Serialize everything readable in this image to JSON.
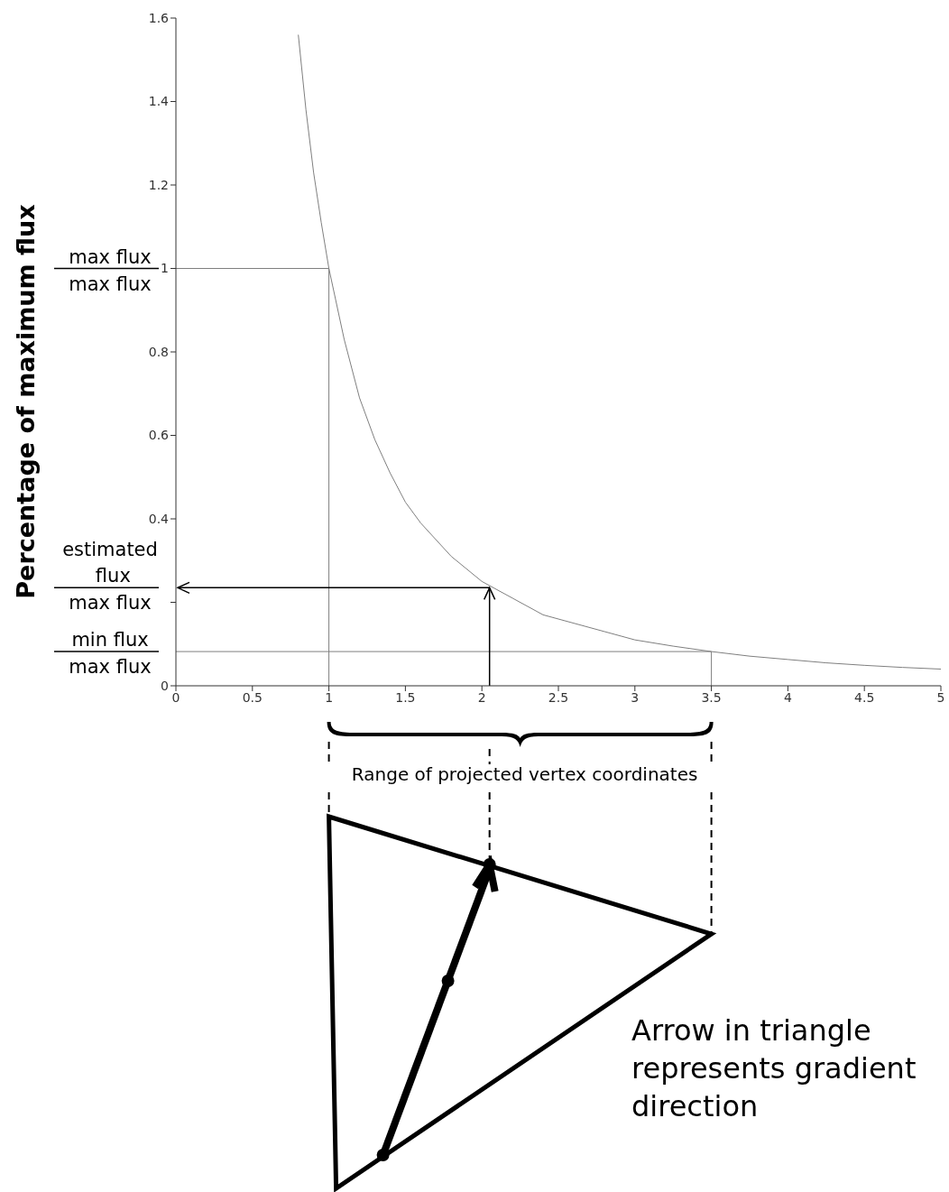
{
  "chart_data": {
    "type": "line",
    "ylabel": "Percentage of maximum flux",
    "xlim": [
      0,
      5
    ],
    "xticks": [
      0,
      0.5,
      1,
      1.5,
      2,
      2.5,
      3,
      3.5,
      4,
      4.5,
      5
    ],
    "ylim": [
      0,
      1.6
    ],
    "yticks": [
      0,
      {
        "value": 0.2,
        "label": null
      },
      0.4,
      0.6,
      0.8,
      1,
      1.2,
      1.4,
      1.6
    ],
    "grid": false,
    "legend": false,
    "marker": "none",
    "line_style": "solid",
    "series": [
      {
        "color": "#7f7f7f",
        "x": [
          0.8,
          0.85,
          0.9,
          0.95,
          1,
          1.1,
          1.2,
          1.3,
          1.4,
          1.5,
          1.6,
          1.8,
          2,
          2.2,
          2.4,
          2.6,
          2.8,
          3,
          3.25,
          3.5,
          3.75,
          4,
          4.25,
          4.5,
          4.75,
          5
        ],
        "values": [
          1.56,
          1.38,
          1.23,
          1.11,
          1,
          0.83,
          0.69,
          0.59,
          0.51,
          0.44,
          0.39,
          0.31,
          0.25,
          0.21,
          0.17,
          0.15,
          0.13,
          0.11,
          0.095,
          0.082,
          0.071,
          0.063,
          0.055,
          0.049,
          0.044,
          0.04
        ]
      },
      {
        "color": "#7f7f7f",
        "x": [
          0,
          1,
          1
        ],
        "values": [
          1,
          1,
          0
        ]
      },
      {
        "color": "#7f7f7f",
        "x": [
          0,
          3.5,
          3.5
        ],
        "values": [
          0.082,
          0.082,
          0
        ]
      }
    ],
    "ref_lines": [
      {
        "axis": "x",
        "value": 2.05,
        "color": "#000000"
      },
      {
        "axis": "y",
        "value": 0.235,
        "color": "#000000"
      }
    ],
    "annotations": [
      "max flux",
      "max flux",
      "estimated flux",
      "max flux",
      "min flux",
      "max flux",
      "Range of projected vertex coordinates",
      "Arrow in triangle represents gradient direction"
    ]
  }
}
